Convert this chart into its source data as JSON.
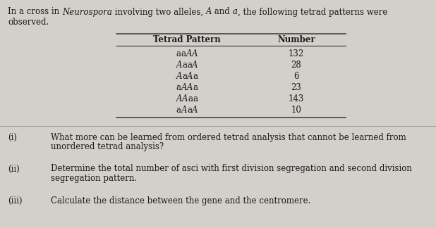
{
  "bg_color": "#d3d0cb",
  "text_color": "#1a1a1a",
  "line_color": "#444444",
  "sep_color": "#999999",
  "fontsize_body": 8.5,
  "fontsize_table": 8.5,
  "tetrad_patterns": [
    [
      "aaAA",
      [
        false,
        false,
        true,
        true
      ],
      "132"
    ],
    [
      "AaaA",
      [
        true,
        false,
        false,
        true
      ],
      "28"
    ],
    [
      "AaAa",
      [
        true,
        false,
        true,
        false
      ],
      "6"
    ],
    [
      "aAAa",
      [
        false,
        true,
        true,
        false
      ],
      "23"
    ],
    [
      "AAaa",
      [
        true,
        true,
        false,
        false
      ],
      "143"
    ],
    [
      "aAaA",
      [
        false,
        true,
        false,
        true
      ],
      "10"
    ]
  ],
  "col1_header": "Tetrad Pattern",
  "col2_header": "Number",
  "questions": [
    [
      "(i)",
      "What more can be learned from ordered tetrad analysis that cannot be learned from",
      "unordered tetrad analysis?"
    ],
    [
      "(ii)",
      "Determine the total number of asci with first division segregation and second division",
      "segregation pattern."
    ],
    [
      "(iii)",
      "Calculate the distance between the gene and the centromere.",
      ""
    ]
  ]
}
